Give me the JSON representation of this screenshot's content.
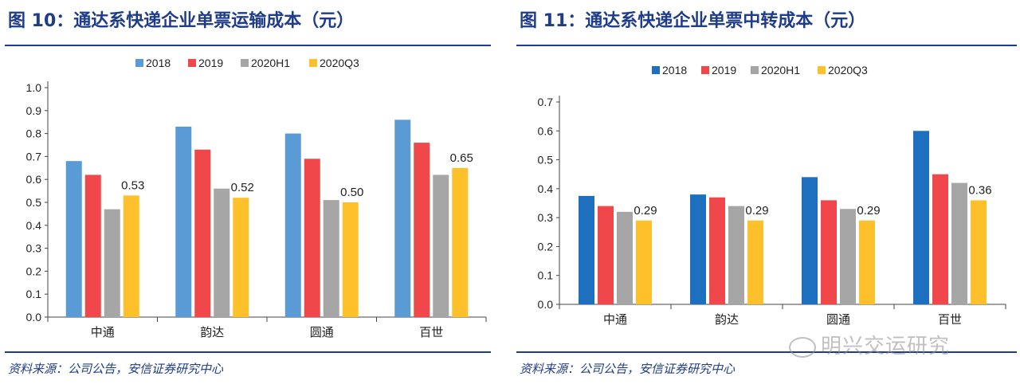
{
  "figures": [
    {
      "title": "图 10：通达系快递企业单票运输成本（元）",
      "source": "资料来源：公司公告，安信证券研究中心"
    },
    {
      "title": "图 11：通达系快递企业单票中转成本（元）",
      "source": "资料来源：公司公告，安信证券研究中心"
    }
  ],
  "watermark": "明兴交运研究",
  "colors": {
    "2018_left": "#5b9bd5",
    "2018_right": "#1f6fbf",
    "2019": "#f0474b",
    "2020H1": "#a6a6a6",
    "2020Q3": "#fec12c",
    "title": "#1f3c88"
  },
  "chart_data": [
    {
      "type": "bar",
      "title": "图 10：通达系快递企业单票运输成本（元）",
      "categories": [
        "中通",
        "韵达",
        "圆通",
        "百世"
      ],
      "series": [
        {
          "name": "2018",
          "values": [
            0.68,
            0.83,
            0.8,
            0.86
          ]
        },
        {
          "name": "2019",
          "values": [
            0.62,
            0.73,
            0.69,
            0.76
          ]
        },
        {
          "name": "2020H1",
          "values": [
            0.47,
            0.56,
            0.51,
            0.62
          ]
        },
        {
          "name": "2020Q3",
          "values": [
            0.53,
            0.52,
            0.5,
            0.65
          ]
        }
      ],
      "data_labels": {
        "series": "2020Q3",
        "labels": [
          "0.53",
          "0.52",
          "0.50",
          "0.65"
        ]
      },
      "ylim": [
        0,
        1.0
      ],
      "yticks": [
        "0.0",
        "0.1",
        "0.2",
        "0.3",
        "0.4",
        "0.5",
        "0.6",
        "0.7",
        "0.8",
        "0.9",
        "1.0"
      ],
      "legend": "top-center",
      "grid": false
    },
    {
      "type": "bar",
      "title": "图 11：通达系快递企业单票中转成本（元）",
      "categories": [
        "中通",
        "韵达",
        "圆通",
        "百世"
      ],
      "series": [
        {
          "name": "2018",
          "values": [
            0.375,
            0.38,
            0.44,
            0.6
          ]
        },
        {
          "name": "2019",
          "values": [
            0.34,
            0.37,
            0.36,
            0.45
          ]
        },
        {
          "name": "2020H1",
          "values": [
            0.32,
            0.34,
            0.33,
            0.42
          ]
        },
        {
          "name": "2020Q3",
          "values": [
            0.29,
            0.29,
            0.29,
            0.36
          ]
        }
      ],
      "data_labels": {
        "series": "2020Q3",
        "labels": [
          "0.29",
          "0.29",
          "0.29",
          "0.36"
        ]
      },
      "ylim": [
        0,
        0.7
      ],
      "yticks": [
        "0.0",
        "0.1",
        "0.2",
        "0.3",
        "0.4",
        "0.5",
        "0.6",
        "0.7"
      ],
      "legend": "top-center",
      "grid": false
    }
  ]
}
